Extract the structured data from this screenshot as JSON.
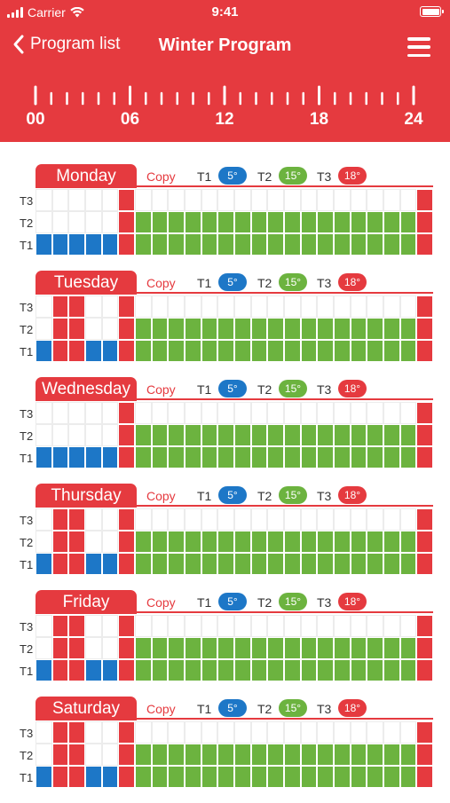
{
  "status_bar": {
    "carrier": "Carrier",
    "time": "9:41"
  },
  "nav": {
    "back_label": "Program list",
    "title": "Winter Program"
  },
  "timeline": {
    "labels": [
      "00",
      "06",
      "12",
      "18",
      "24"
    ]
  },
  "legend": {
    "copy_label": "Copy",
    "t1": {
      "label": "T1",
      "value": "5°",
      "color": "#1d77c7"
    },
    "t2": {
      "label": "T2",
      "value": "15°",
      "color": "#6cb33f"
    },
    "t3": {
      "label": "T3",
      "value": "18°",
      "color": "#e53a3f"
    }
  },
  "row_labels": [
    "T3",
    "T2",
    "T1"
  ],
  "days": [
    {
      "name": "Monday",
      "schedule": [
        1,
        1,
        1,
        1,
        1,
        3,
        2,
        2,
        2,
        2,
        2,
        2,
        2,
        2,
        2,
        2,
        2,
        2,
        2,
        2,
        2,
        2,
        2,
        3
      ]
    },
    {
      "name": "Tuesday",
      "schedule": [
        1,
        3,
        3,
        1,
        1,
        3,
        2,
        2,
        2,
        2,
        2,
        2,
        2,
        2,
        2,
        2,
        2,
        2,
        2,
        2,
        2,
        2,
        2,
        3
      ]
    },
    {
      "name": "Wednesday",
      "schedule": [
        1,
        1,
        1,
        1,
        1,
        3,
        2,
        2,
        2,
        2,
        2,
        2,
        2,
        2,
        2,
        2,
        2,
        2,
        2,
        2,
        2,
        2,
        2,
        3
      ]
    },
    {
      "name": "Thursday",
      "schedule": [
        1,
        3,
        3,
        1,
        1,
        3,
        2,
        2,
        2,
        2,
        2,
        2,
        2,
        2,
        2,
        2,
        2,
        2,
        2,
        2,
        2,
        2,
        2,
        3
      ]
    },
    {
      "name": "Friday",
      "schedule": [
        1,
        3,
        3,
        1,
        1,
        3,
        2,
        2,
        2,
        2,
        2,
        2,
        2,
        2,
        2,
        2,
        2,
        2,
        2,
        2,
        2,
        2,
        2,
        3
      ]
    },
    {
      "name": "Saturday",
      "schedule": [
        1,
        3,
        3,
        1,
        1,
        3,
        2,
        2,
        2,
        2,
        2,
        2,
        2,
        2,
        2,
        2,
        2,
        2,
        2,
        2,
        2,
        2,
        2,
        3
      ]
    }
  ]
}
